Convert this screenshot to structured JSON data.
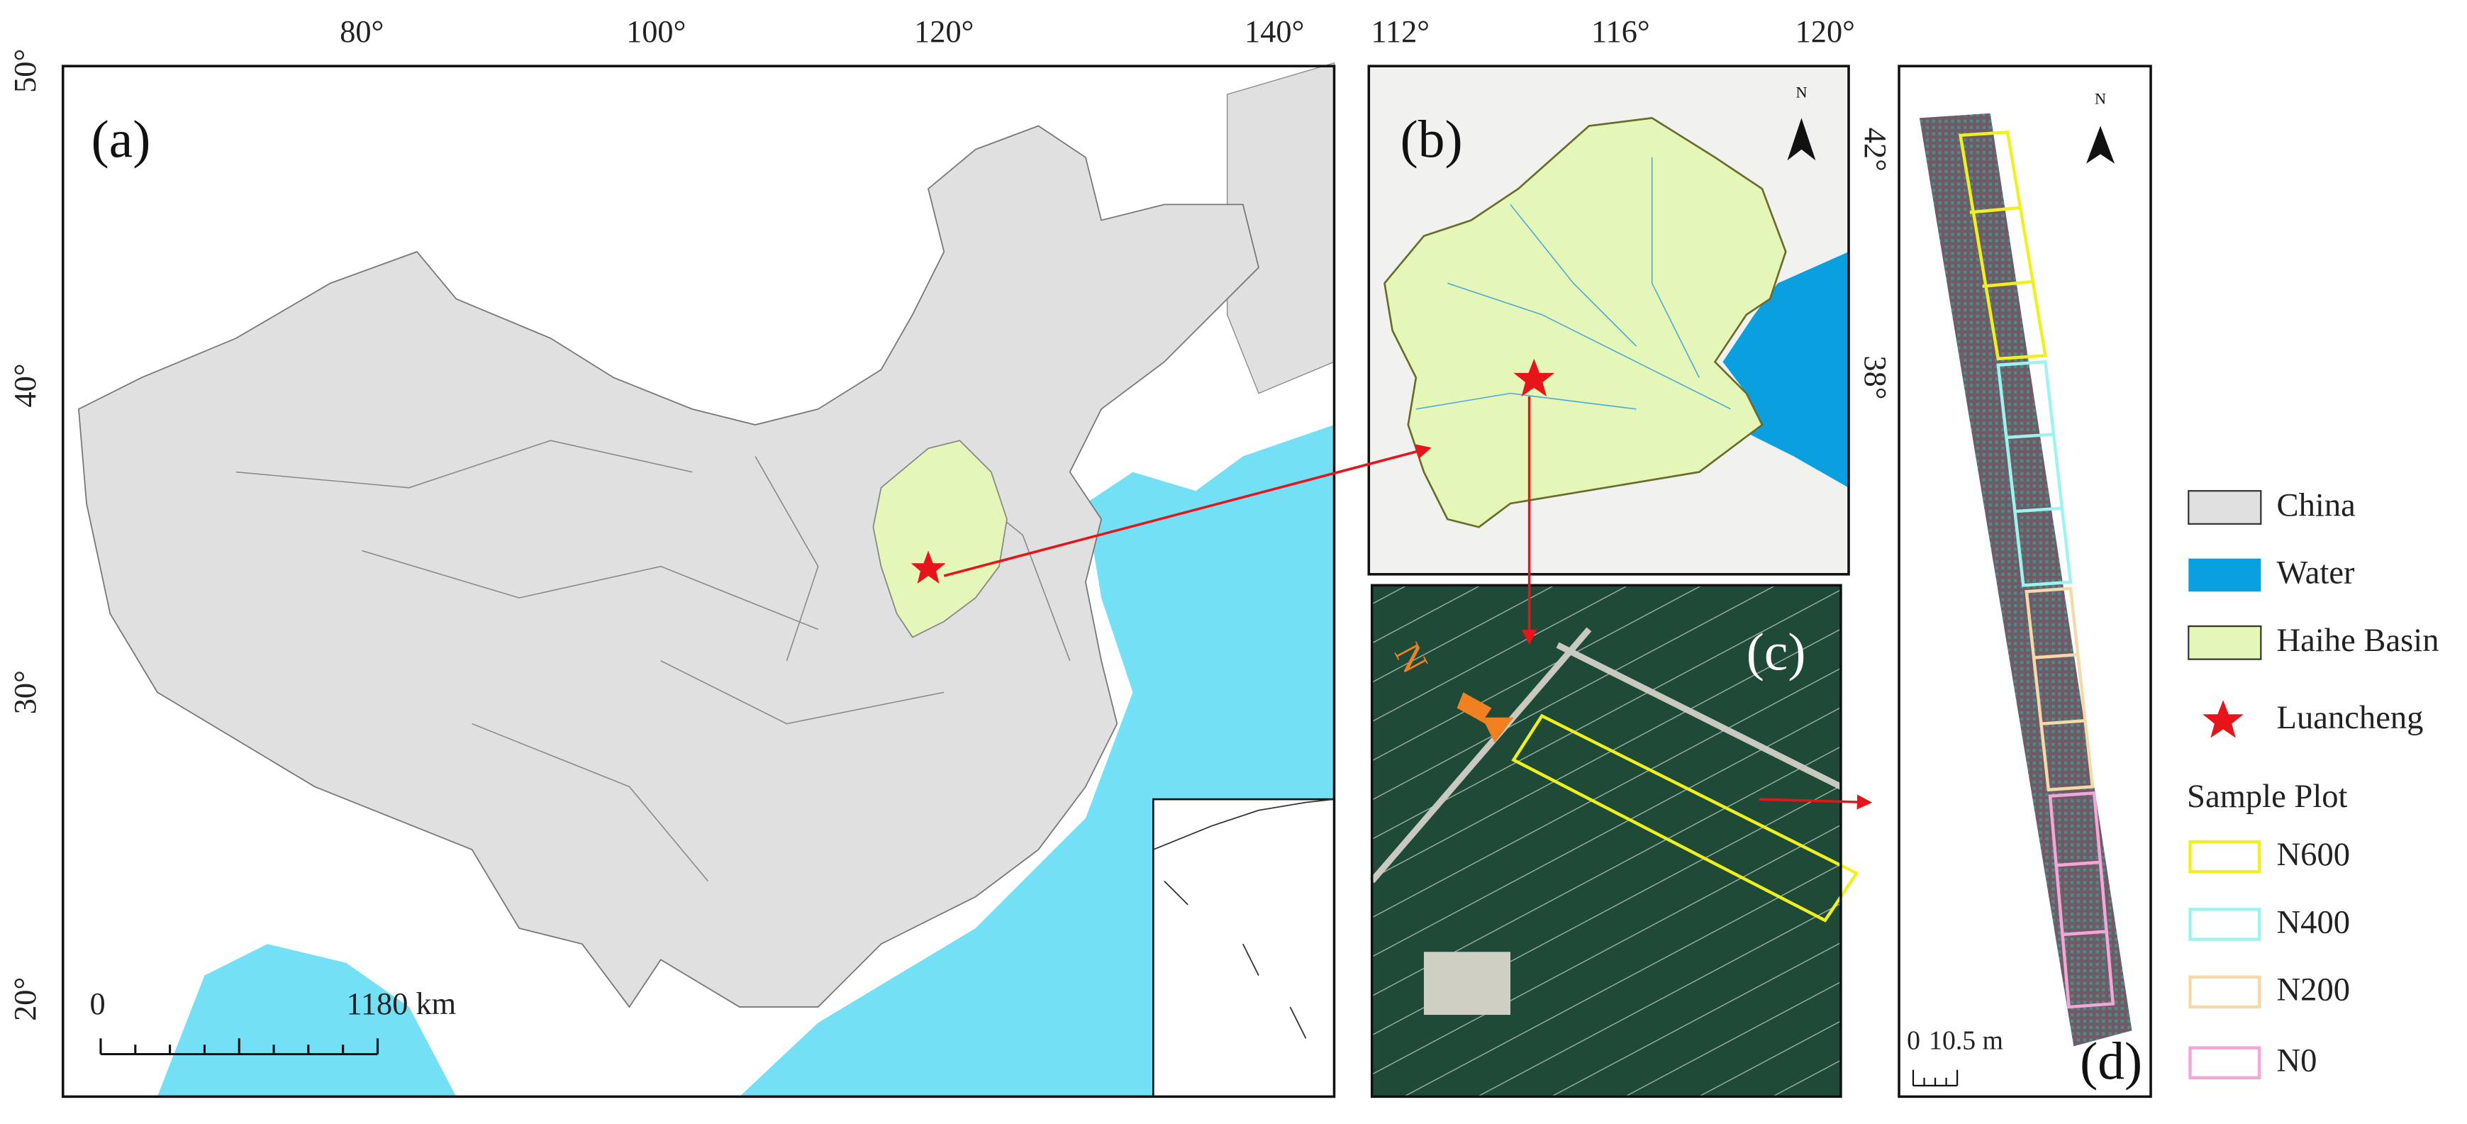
{
  "panel_a": {
    "label": "(a)",
    "top_ticks": [
      "80°",
      "100°",
      "120°",
      "140°"
    ],
    "left_ticks": [
      "50°",
      "40°",
      "30°",
      "20°"
    ],
    "scale_bar": [
      "0",
      "1180 km"
    ]
  },
  "panel_b": {
    "label": "(b)",
    "top_ticks": [
      "112°",
      "116°",
      "120°"
    ],
    "right_ticks": [
      "42°",
      "38°"
    ],
    "north": "N"
  },
  "panel_c": {
    "label": "(c)",
    "north": "N"
  },
  "panel_d": {
    "label": "(d)",
    "north": "N",
    "scale_bar": [
      "0",
      "10.5 m"
    ]
  },
  "legend": {
    "items": [
      "China",
      "Water",
      "Haihe Basin",
      "Luancheng"
    ],
    "group_title": "Sample Plot",
    "plots": [
      "N600",
      "N400",
      "N200",
      "N0"
    ]
  }
}
